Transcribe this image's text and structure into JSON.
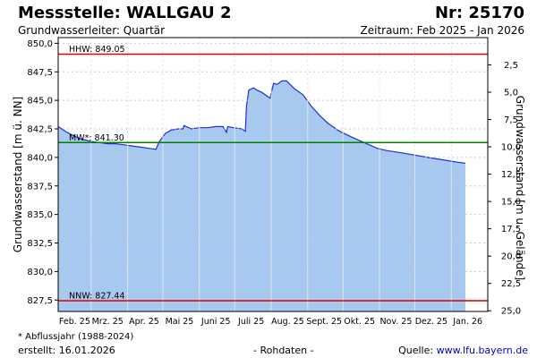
{
  "header": {
    "title": "Messstelle: WALLGAU 2",
    "number": "Nr: 25170",
    "aquifer": "Grundwasserleiter: Quartär",
    "period": "Zeitraum: Feb 2025 - Jan 2026"
  },
  "footer": {
    "footnote": "* Abflussjahr (1988-2024)",
    "created": "erstellt:  16.01.2026",
    "raw_data": "- Rohdaten -",
    "source_label": "Quelle:",
    "source_link": "www.lfu.bayern.de"
  },
  "colors": {
    "fill": "#a7c8ef",
    "line": "#1f2fd6",
    "hhw": "#e00000",
    "nnw": "#e00000",
    "mw": "#008000",
    "grid": "#c8c8c8"
  },
  "chart_data": {
    "type": "area",
    "ylabel_left": "Grundwasserstand [m ü. NN]",
    "ylabel_right": "Grundwasserstand [m u. Gelände]",
    "ylim_left": [
      826.5,
      850.5
    ],
    "yticks_left": [
      "827,5",
      "830,0",
      "832,5",
      "835,0",
      "837,5",
      "840,0",
      "842,5",
      "845,0",
      "847,5",
      "850,0"
    ],
    "yticks_right": [
      "2,5",
      "5,0",
      "7,5",
      "10,0",
      "12,5",
      "15,0",
      "17,5",
      "20,0",
      "22,5",
      "25,0"
    ],
    "xtick_labels": [
      "Feb. 25",
      "Mrz. 25",
      "Apr. 25",
      "Mai 25",
      "Juni 25",
      "Juli 25",
      "Aug. 25",
      "Sept. 25",
      "Okt. 25",
      "Nov. 25",
      "Dez. 25",
      "Jan. 26"
    ],
    "reference_lines": [
      {
        "label": "HHW: 849.05",
        "value": 849.05
      },
      {
        "label": "MW*: 841.30",
        "value": 841.3
      },
      {
        "label": "NNW: 827.44",
        "value": 827.44
      }
    ],
    "grid": true,
    "x": [
      "2025-02-01",
      "2025-02-07",
      "2025-02-14",
      "2025-02-21",
      "2025-03-01",
      "2025-03-08",
      "2025-03-15",
      "2025-03-22",
      "2025-03-29",
      "2025-04-05",
      "2025-04-12",
      "2025-04-19",
      "2025-04-25",
      "2025-04-28",
      "2025-05-03",
      "2025-05-08",
      "2025-05-14",
      "2025-05-18",
      "2025-05-19",
      "2025-05-25",
      "2025-06-01",
      "2025-06-08",
      "2025-06-15",
      "2025-06-21",
      "2025-06-24",
      "2025-06-25",
      "2025-06-30",
      "2025-07-07",
      "2025-07-10",
      "2025-07-11",
      "2025-07-13",
      "2025-07-17",
      "2025-07-20",
      "2025-07-24",
      "2025-07-31",
      "2025-08-03",
      "2025-08-06",
      "2025-08-10",
      "2025-08-14",
      "2025-08-21",
      "2025-08-28",
      "2025-09-04",
      "2025-09-11",
      "2025-09-18",
      "2025-09-28",
      "2025-10-08",
      "2025-10-19",
      "2025-10-30",
      "2025-11-07",
      "2025-11-20",
      "2025-12-01",
      "2025-12-12",
      "2025-12-24",
      "2026-01-05",
      "2026-01-13"
    ],
    "y": [
      842.7,
      842.3,
      841.9,
      841.6,
      841.4,
      841.3,
      841.2,
      841.2,
      841.1,
      841.0,
      840.9,
      840.8,
      840.7,
      841.4,
      842.1,
      842.4,
      842.5,
      842.5,
      842.8,
      842.5,
      842.6,
      842.6,
      842.7,
      842.7,
      842.2,
      842.7,
      842.6,
      842.5,
      842.3,
      844.5,
      845.9,
      846.1,
      845.9,
      845.7,
      845.2,
      846.5,
      846.4,
      846.7,
      846.7,
      846.0,
      845.5,
      844.5,
      843.7,
      843.0,
      842.3,
      841.8,
      841.3,
      840.8,
      840.6,
      840.4,
      840.2,
      840.0,
      839.8,
      839.6,
      839.5
    ]
  }
}
